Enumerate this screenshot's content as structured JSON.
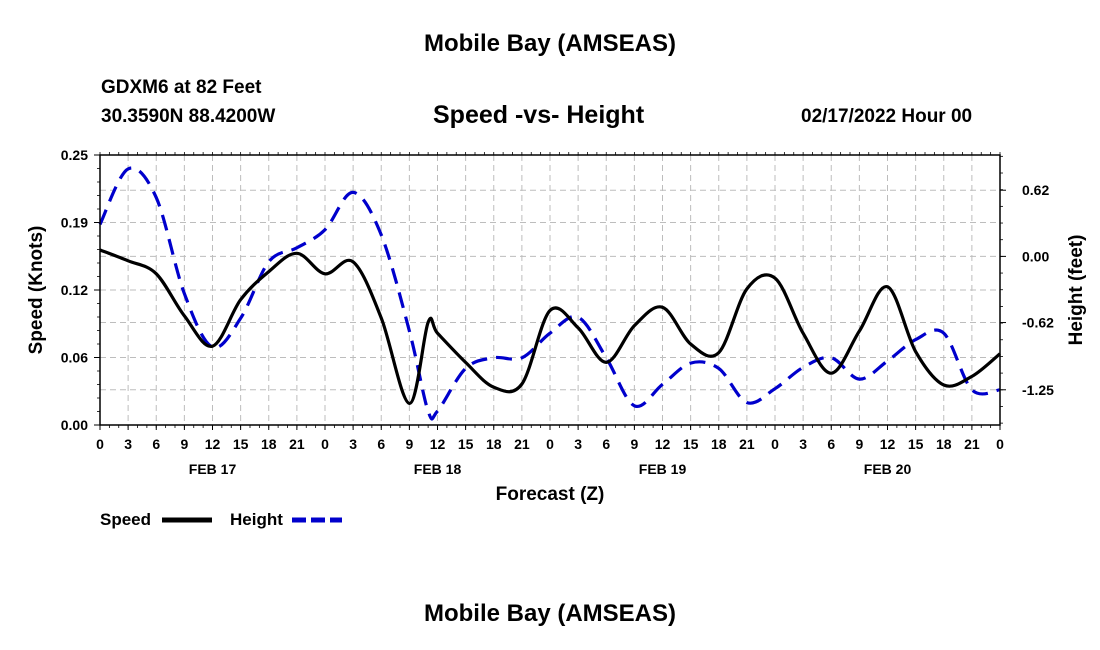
{
  "header": {
    "title": "Mobile Bay (AMSEAS)",
    "station": "GDXM6 at 82 Feet",
    "coords": "30.3590N  88.4200W",
    "subtitle": "Speed -vs- Height",
    "date": "02/17/2022 Hour 00",
    "footer_title": "Mobile Bay (AMSEAS)"
  },
  "colors": {
    "speed": "#000000",
    "height": "#0000cc",
    "grid": "#bdbdbd"
  },
  "chart_data": {
    "type": "line",
    "title": "Speed -vs- Height",
    "xlabel": "Forecast (Z)",
    "ylabel": "Speed (Knots)",
    "y2label": "Height (feet)",
    "xlim": [
      0,
      96
    ],
    "ylim": [
      0,
      0.25
    ],
    "y2lim": [
      -1.58,
      0.95
    ],
    "x_tick_labels": [
      "0",
      "3",
      "6",
      "9",
      "12",
      "15",
      "18",
      "21",
      "0",
      "3",
      "6",
      "9",
      "12",
      "15",
      "18",
      "21",
      "0",
      "3",
      "6",
      "9",
      "12",
      "15",
      "18",
      "21",
      "0",
      "3",
      "6",
      "9",
      "12",
      "15",
      "18",
      "21",
      "0"
    ],
    "day_labels": [
      {
        "label": "FEB 17",
        "x": 12
      },
      {
        "label": "FEB 18",
        "x": 36
      },
      {
        "label": "FEB 19",
        "x": 60
      },
      {
        "label": "FEB 20",
        "x": 84
      }
    ],
    "y_ticks": [
      {
        "value": 0.25,
        "label": "0.25"
      },
      {
        "value": 0.1875,
        "label": "0.19"
      },
      {
        "value": 0.125,
        "label": "0.12"
      },
      {
        "value": 0.0625,
        "label": "0.06"
      },
      {
        "value": 0,
        "label": "0.00"
      }
    ],
    "y2_ticks": [
      {
        "value": 0.62,
        "label": "0.62"
      },
      {
        "value": 0.0,
        "label": "0.00"
      },
      {
        "value": -0.62,
        "label": "-0.62"
      },
      {
        "value": -1.25,
        "label": "-1.25"
      }
    ],
    "series": [
      {
        "name": "Speed",
        "axis": "left",
        "style": "solid",
        "x": [
          0,
          3,
          6,
          9,
          12,
          15,
          18,
          21,
          24,
          27,
          30,
          33,
          35,
          36,
          39,
          42,
          45,
          48,
          51,
          54,
          57,
          60,
          63,
          66,
          69,
          72,
          75,
          78,
          81,
          84,
          87,
          90,
          93,
          96
        ],
        "values": [
          0.162,
          0.152,
          0.14,
          0.101,
          0.073,
          0.116,
          0.142,
          0.159,
          0.14,
          0.151,
          0.099,
          0.02,
          0.095,
          0.085,
          0.058,
          0.035,
          0.038,
          0.106,
          0.09,
          0.058,
          0.092,
          0.109,
          0.075,
          0.067,
          0.126,
          0.136,
          0.085,
          0.048,
          0.087,
          0.128,
          0.068,
          0.037,
          0.045,
          0.066
        ]
      },
      {
        "name": "Height",
        "axis": "right",
        "style": "dashed",
        "x": [
          0,
          3,
          6,
          9,
          12,
          15,
          18,
          21,
          24,
          27,
          30,
          33,
          35,
          36,
          39,
          42,
          45,
          48,
          51,
          54,
          57,
          60,
          63,
          66,
          69,
          72,
          75,
          78,
          81,
          84,
          87,
          90,
          93,
          96
        ],
        "values": [
          0.3,
          0.82,
          0.55,
          -0.35,
          -0.85,
          -0.58,
          -0.05,
          0.08,
          0.25,
          0.6,
          0.2,
          -0.7,
          -1.45,
          -1.45,
          -1.05,
          -0.95,
          -0.95,
          -0.72,
          -0.57,
          -0.95,
          -1.4,
          -1.2,
          -1.0,
          -1.05,
          -1.37,
          -1.24,
          -1.04,
          -0.95,
          -1.15,
          -0.98,
          -0.78,
          -0.72,
          -1.25,
          -1.25
        ]
      }
    ],
    "legend": {
      "position": "bottom-left",
      "labels": [
        "Speed",
        "Height"
      ]
    }
  }
}
